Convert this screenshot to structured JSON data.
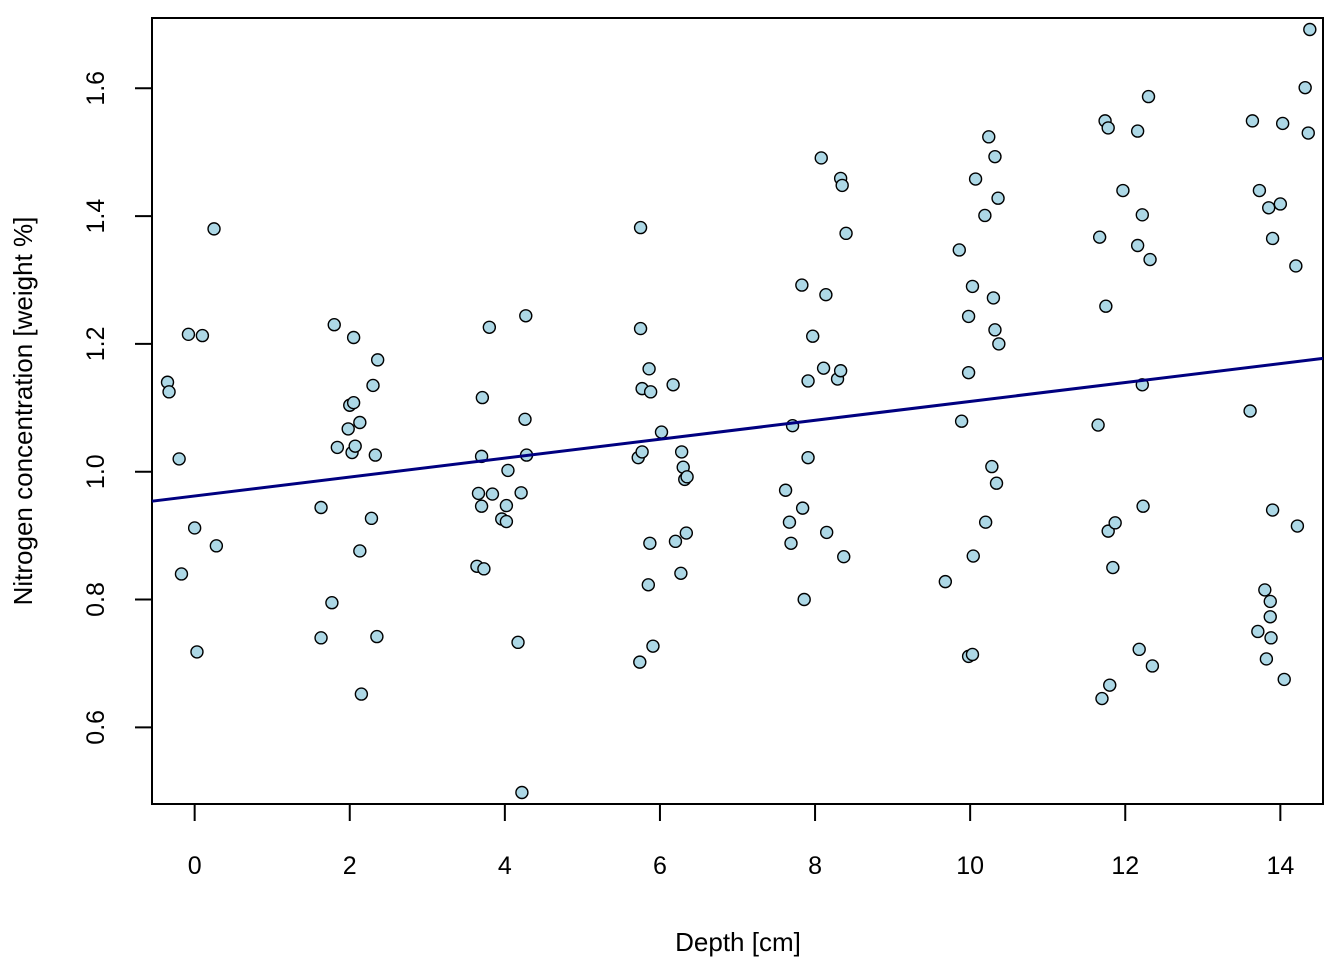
{
  "chart_data": {
    "type": "scatter",
    "title": "",
    "xlabel": "Depth [cm]",
    "ylabel": "Nitrogen concentration [weight %]",
    "xlim": [
      -0.55,
      14.55
    ],
    "ylim": [
      0.48,
      1.71
    ],
    "x_ticks": [
      0,
      2,
      4,
      6,
      8,
      10,
      12,
      14
    ],
    "x_tick_labels": [
      "0",
      "2",
      "4",
      "6",
      "8",
      "10",
      "12",
      "14"
    ],
    "y_ticks": [
      0.6,
      0.8,
      1.0,
      1.2,
      1.4,
      1.6
    ],
    "y_tick_labels": [
      "0.6",
      "0.8",
      "1.0",
      "1.2",
      "1.4",
      "1.6"
    ],
    "grid": false,
    "point_fill": "#add8e6",
    "point_stroke": "#000000",
    "line_color": "#000080",
    "regression_line": {
      "intercept": 0.962,
      "slope": 0.0148
    },
    "points": [
      [
        -0.35,
        1.14
      ],
      [
        -0.33,
        1.125
      ],
      [
        -0.2,
        1.02
      ],
      [
        -0.17,
        0.84
      ],
      [
        -0.08,
        1.215
      ],
      [
        0.0,
        0.912
      ],
      [
        0.03,
        0.718
      ],
      [
        0.1,
        1.213
      ],
      [
        0.25,
        1.38
      ],
      [
        0.28,
        0.884
      ],
      [
        1.63,
        0.74
      ],
      [
        1.63,
        0.944
      ],
      [
        1.77,
        0.795
      ],
      [
        1.8,
        1.23
      ],
      [
        1.84,
        1.038
      ],
      [
        1.98,
        1.067
      ],
      [
        2.0,
        1.104
      ],
      [
        2.03,
        1.03
      ],
      [
        2.05,
        1.108
      ],
      [
        2.05,
        1.21
      ],
      [
        2.07,
        1.04
      ],
      [
        2.13,
        1.077
      ],
      [
        2.13,
        0.876
      ],
      [
        2.15,
        0.652
      ],
      [
        2.28,
        0.927
      ],
      [
        2.3,
        1.135
      ],
      [
        2.33,
        1.026
      ],
      [
        2.35,
        0.742
      ],
      [
        2.36,
        1.175
      ],
      [
        3.64,
        0.852
      ],
      [
        3.66,
        0.966
      ],
      [
        3.7,
        1.024
      ],
      [
        3.7,
        0.946
      ],
      [
        3.71,
        1.116
      ],
      [
        3.73,
        0.848
      ],
      [
        3.8,
        1.226
      ],
      [
        3.84,
        0.965
      ],
      [
        3.96,
        0.926
      ],
      [
        4.02,
        0.922
      ],
      [
        4.02,
        0.947
      ],
      [
        4.04,
        1.002
      ],
      [
        4.17,
        0.733
      ],
      [
        4.21,
        0.967
      ],
      [
        4.22,
        0.498
      ],
      [
        4.26,
        1.082
      ],
      [
        4.27,
        1.244
      ],
      [
        4.28,
        1.026
      ],
      [
        5.72,
        1.022
      ],
      [
        5.74,
        0.702
      ],
      [
        5.75,
        1.382
      ],
      [
        5.75,
        1.224
      ],
      [
        5.77,
        1.031
      ],
      [
        5.77,
        1.13
      ],
      [
        5.85,
        0.823
      ],
      [
        5.86,
        1.161
      ],
      [
        5.87,
        0.888
      ],
      [
        5.88,
        1.125
      ],
      [
        5.91,
        0.727
      ],
      [
        6.02,
        1.062
      ],
      [
        6.17,
        1.136
      ],
      [
        6.2,
        0.891
      ],
      [
        6.27,
        0.841
      ],
      [
        6.28,
        1.031
      ],
      [
        6.3,
        1.007
      ],
      [
        6.32,
        0.988
      ],
      [
        6.34,
        0.904
      ],
      [
        6.35,
        0.992
      ],
      [
        7.62,
        0.971
      ],
      [
        7.67,
        0.921
      ],
      [
        7.69,
        0.888
      ],
      [
        7.71,
        1.072
      ],
      [
        7.83,
        1.292
      ],
      [
        7.84,
        0.943
      ],
      [
        7.86,
        0.8
      ],
      [
        7.91,
        1.022
      ],
      [
        7.91,
        1.142
      ],
      [
        7.97,
        1.212
      ],
      [
        8.08,
        1.491
      ],
      [
        8.11,
        1.162
      ],
      [
        8.14,
        1.277
      ],
      [
        8.15,
        0.905
      ],
      [
        8.29,
        1.145
      ],
      [
        8.33,
        1.459
      ],
      [
        8.33,
        1.158
      ],
      [
        8.35,
        1.448
      ],
      [
        8.37,
        0.867
      ],
      [
        8.4,
        1.373
      ],
      [
        9.68,
        0.828
      ],
      [
        9.86,
        1.347
      ],
      [
        9.89,
        1.079
      ],
      [
        9.98,
        0.711
      ],
      [
        9.98,
        1.243
      ],
      [
        9.98,
        1.155
      ],
      [
        10.03,
        0.714
      ],
      [
        10.04,
        0.868
      ],
      [
        10.03,
        1.29
      ],
      [
        10.07,
        1.458
      ],
      [
        10.19,
        1.401
      ],
      [
        10.2,
        0.921
      ],
      [
        10.24,
        1.524
      ],
      [
        10.28,
        1.008
      ],
      [
        10.3,
        1.272
      ],
      [
        10.32,
        1.222
      ],
      [
        10.32,
        1.493
      ],
      [
        10.34,
        0.982
      ],
      [
        10.36,
        1.428
      ],
      [
        10.37,
        1.2
      ],
      [
        11.65,
        1.073
      ],
      [
        11.67,
        1.367
      ],
      [
        11.7,
        0.645
      ],
      [
        11.74,
        1.549
      ],
      [
        11.75,
        1.259
      ],
      [
        11.78,
        0.907
      ],
      [
        11.78,
        1.538
      ],
      [
        11.8,
        0.666
      ],
      [
        11.84,
        0.85
      ],
      [
        11.87,
        0.92
      ],
      [
        11.97,
        1.44
      ],
      [
        12.16,
        1.354
      ],
      [
        12.16,
        1.533
      ],
      [
        12.18,
        0.722
      ],
      [
        12.22,
        1.402
      ],
      [
        12.22,
        1.136
      ],
      [
        12.23,
        0.946
      ],
      [
        12.3,
        1.587
      ],
      [
        12.32,
        1.332
      ],
      [
        12.35,
        0.696
      ],
      [
        13.61,
        1.095
      ],
      [
        13.64,
        1.549
      ],
      [
        13.71,
        0.75
      ],
      [
        13.73,
        1.44
      ],
      [
        13.8,
        0.815
      ],
      [
        13.82,
        0.707
      ],
      [
        13.85,
        1.413
      ],
      [
        13.87,
        0.773
      ],
      [
        13.87,
        0.797
      ],
      [
        13.88,
        0.74
      ],
      [
        13.9,
        1.365
      ],
      [
        13.9,
        0.94
      ],
      [
        14.0,
        1.419
      ],
      [
        14.03,
        1.545
      ],
      [
        14.05,
        0.675
      ],
      [
        14.2,
        1.322
      ],
      [
        14.22,
        0.915
      ],
      [
        14.32,
        1.601
      ],
      [
        14.36,
        1.53
      ],
      [
        14.38,
        1.692
      ]
    ]
  }
}
